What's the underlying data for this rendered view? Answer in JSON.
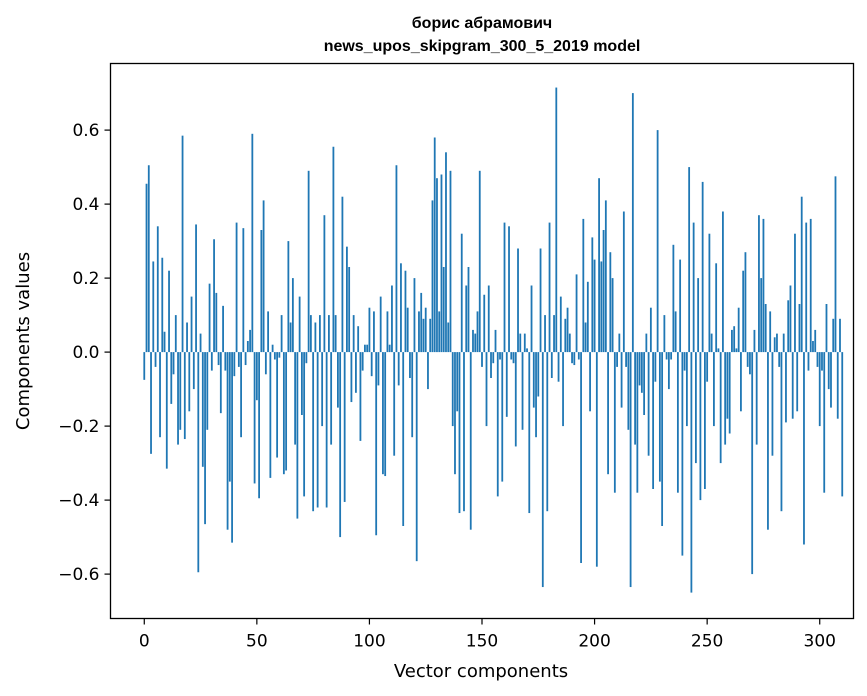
{
  "chart_data": {
    "type": "bar",
    "title": "борис абрамович",
    "subtitle": "news_upos_skipgram_300_5_2019 model",
    "xlabel": "Vector components",
    "ylabel": "Components values",
    "xlim": [
      -15,
      315
    ],
    "ylim": [
      -0.72,
      0.78
    ],
    "xticks": [
      0,
      50,
      100,
      150,
      200,
      250,
      300
    ],
    "xtick_labels": [
      "0",
      "50",
      "100",
      "150",
      "200",
      "250",
      "300"
    ],
    "yticks": [
      -0.6,
      -0.4,
      -0.2,
      0.0,
      0.2,
      0.4,
      0.6
    ],
    "ytick_labels": [
      "−0.6",
      "−0.4",
      "−0.2",
      "0.0",
      "0.2",
      "0.4",
      "0.6"
    ],
    "grid": false,
    "bar_color": "#1f77b4",
    "x_start": 0,
    "values": [
      -0.075,
      0.455,
      0.505,
      -0.275,
      0.245,
      -0.04,
      0.34,
      -0.23,
      0.255,
      0.055,
      -0.315,
      0.22,
      -0.14,
      -0.06,
      0.1,
      -0.25,
      -0.21,
      0.585,
      -0.235,
      0.08,
      -0.16,
      0.15,
      -0.1,
      0.345,
      -0.595,
      0.05,
      -0.31,
      -0.465,
      -0.21,
      0.185,
      -0.05,
      0.305,
      0.16,
      -0.035,
      -0.165,
      0.125,
      -0.05,
      -0.48,
      -0.35,
      -0.515,
      -0.065,
      0.35,
      -0.04,
      -0.23,
      0.335,
      -0.035,
      0.03,
      0.06,
      0.59,
      -0.355,
      -0.13,
      -0.395,
      0.33,
      0.41,
      -0.06,
      0.11,
      -0.34,
      0.02,
      -0.02,
      -0.285,
      -0.015,
      0.1,
      -0.33,
      -0.32,
      0.3,
      0.08,
      0.2,
      -0.25,
      -0.45,
      0.15,
      -0.17,
      -0.39,
      -0.03,
      0.49,
      0.1,
      -0.43,
      0.08,
      -0.42,
      0.1,
      -0.2,
      0.37,
      -0.42,
      0.1,
      -0.25,
      0.555,
      0.1,
      -0.15,
      -0.5,
      0.42,
      -0.405,
      0.285,
      0.23,
      -0.135,
      0.1,
      -0.11,
      0.07,
      -0.24,
      -0.05,
      0.02,
      0.02,
      0.12,
      -0.065,
      0.11,
      -0.495,
      -0.09,
      0.15,
      -0.33,
      -0.335,
      0.11,
      0.02,
      0.18,
      -0.28,
      0.505,
      -0.09,
      0.24,
      -0.47,
      0.22,
      0.12,
      -0.07,
      -0.23,
      0.2,
      -0.565,
      0.11,
      0.16,
      0.09,
      0.12,
      -0.1,
      0.09,
      0.41,
      0.58,
      0.47,
      0.11,
      0.48,
      0.23,
      0.54,
      0.08,
      0.49,
      -0.2,
      -0.33,
      -0.16,
      -0.435,
      0.32,
      -0.43,
      0.18,
      0.23,
      -0.48,
      0.06,
      0.05,
      0.11,
      0.49,
      -0.04,
      0.155,
      -0.2,
      0.18,
      -0.07,
      -0.03,
      0.06,
      -0.39,
      -0.02,
      -0.35,
      0.35,
      -0.175,
      0.34,
      -0.02,
      -0.03,
      -0.255,
      0.28,
      0.05,
      -0.21,
      0.05,
      0.01,
      -0.435,
      0.18,
      -0.15,
      -0.23,
      -0.12,
      0.28,
      -0.635,
      0.1,
      -0.43,
      0.35,
      -0.07,
      0.1,
      0.715,
      -0.08,
      0.15,
      -0.2,
      0.09,
      0.12,
      0.05,
      -0.03,
      -0.035,
      0.21,
      -0.02,
      -0.57,
      0.36,
      0.08,
      0.19,
      -0.16,
      0.31,
      0.25,
      -0.58,
      0.47,
      0.245,
      0.33,
      0.41,
      -0.33,
      0.27,
      0.2,
      -0.38,
      -0.04,
      0.05,
      -0.15,
      0.38,
      -0.04,
      -0.21,
      -0.635,
      0.7,
      -0.25,
      -0.38,
      -0.09,
      -0.11,
      -0.17,
      0.05,
      -0.28,
      0.12,
      -0.37,
      -0.08,
      0.6,
      -0.35,
      -0.47,
      0.1,
      -0.02,
      -0.1,
      -0.02,
      0.29,
      0.11,
      -0.38,
      0.25,
      -0.55,
      -0.05,
      -0.2,
      0.5,
      -0.65,
      0.35,
      -0.3,
      0.2,
      -0.4,
      0.46,
      -0.37,
      -0.08,
      0.32,
      0.05,
      -0.2,
      0.24,
      0.01,
      -0.3,
      0.38,
      -0.25,
      -0.18,
      -0.22,
      0.06,
      0.07,
      0.01,
      0.12,
      -0.16,
      0.22,
      0.27,
      -0.04,
      -0.06,
      -0.6,
      0.06,
      -0.25,
      0.37,
      0.2,
      0.36,
      0.13,
      -0.48,
      0.11,
      -0.28,
      0.04,
      0.05,
      -0.04,
      -0.43,
      0.05,
      -0.19,
      0.14,
      0.18,
      -0.18,
      0.32,
      -0.16,
      0.13,
      0.42,
      -0.52,
      0.35,
      -0.05,
      0.36,
      0.03,
      0.06,
      -0.04,
      -0.2,
      -0.05,
      -0.38,
      0.13,
      -0.1,
      -0.15,
      0.09,
      0.475,
      -0.18,
      0.09,
      -0.39
    ]
  }
}
